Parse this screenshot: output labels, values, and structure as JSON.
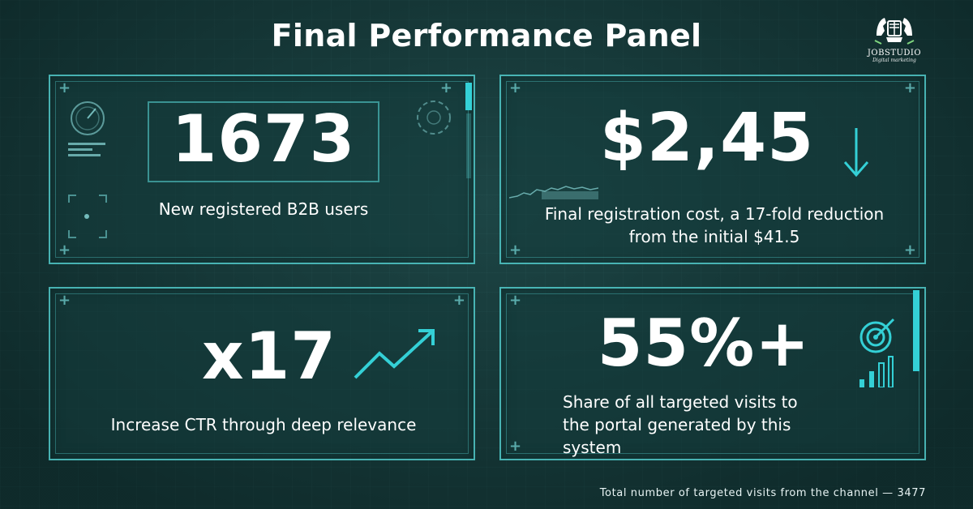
{
  "title": "Final Performance Panel",
  "brand": {
    "name": "JOBSTUDIO",
    "tagline": "Digital marketing"
  },
  "panels": [
    {
      "value": "1673",
      "caption": "New registered B2B users",
      "icon": "gauge-icon"
    },
    {
      "value": "$2,45",
      "caption_lines": [
        "Final registration cost, a 17-fold reduction",
        "from the initial $41.5"
      ],
      "icon": "arrow-down-icon"
    },
    {
      "value": "x17",
      "caption": "Increase CTR through deep relevance",
      "icon": "trend-up-icon"
    },
    {
      "value": "55%+",
      "caption_lines": [
        "Share of all targeted visits to",
        "the portal generated by this",
        "system"
      ],
      "icon": "target-icon"
    }
  ],
  "footer": "Total number of targeted visits from the channel — 3477",
  "colors": {
    "background": "#173a3a",
    "accent": "#34d0d6",
    "text": "#ffffff"
  }
}
